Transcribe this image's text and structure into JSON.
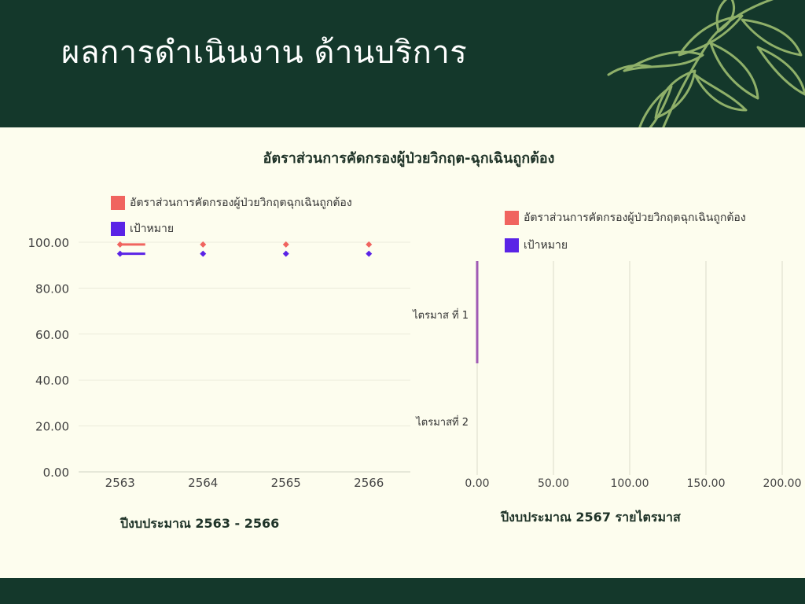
{
  "page": {
    "title": "ผลการดำเนินงาน ด้านบริการ",
    "header_color": "#14382b",
    "background_color": "#fdfdee"
  },
  "chart_data": [
    {
      "type": "line",
      "title": "อัตราส่วนการคัดกรองผู้ป่วยวิกฤต-ฉุกเฉินถูกต้อง",
      "caption": "ปีงบประมาณ  2563 - 2566",
      "categories": [
        "2563",
        "2564",
        "2565",
        "2566"
      ],
      "series": [
        {
          "name": "อัตราส่วนการคัดกรองผู้ป่วยวิกฤตฉุกเฉินถูกต้อง",
          "values": [
            99,
            99,
            99,
            99
          ],
          "color": "#f0645f"
        },
        {
          "name": "เป้าหมาย",
          "values": [
            95,
            95,
            95,
            95
          ],
          "color": "#5a23e6"
        }
      ],
      "ylim": [
        0,
        100
      ],
      "yticks": [
        "0.00",
        "20.00",
        "40.00",
        "60.00",
        "80.00",
        "100.00"
      ],
      "grid": true,
      "legend": "top-left"
    },
    {
      "type": "bar",
      "orientation": "horizontal",
      "caption": "ปีงบประมาณ 2567 รายไตรมาส",
      "categories": [
        "ไตรมาส ที่ 1",
        "ไตรมาสที่ 2"
      ],
      "series": [
        {
          "name": "อัตราส่วนการคัดกรองผู้ป่วยวิกฤตฉุกเฉินถูกต้อง",
          "values": [
            null,
            null
          ],
          "color": "#f0645f"
        },
        {
          "name": "เป้าหมาย",
          "values": [
            null,
            null
          ],
          "color": "#5a23e6"
        }
      ],
      "xlim": [
        0,
        200
      ],
      "xticks": [
        "0.00",
        "50.00",
        "100.00",
        "150.00",
        "200.00"
      ],
      "grid": true,
      "legend": "top"
    }
  ]
}
